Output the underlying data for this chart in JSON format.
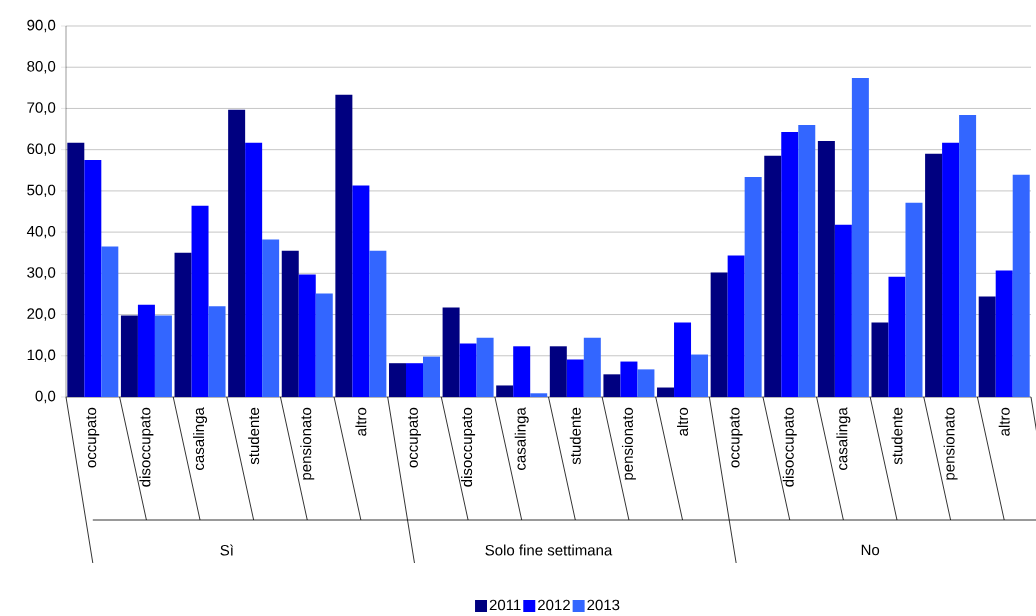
{
  "chart_data": {
    "type": "bar",
    "categories": [
      "occupato",
      "disoccupato",
      "casalinga",
      "studente",
      "pensionato",
      "altro",
      "occupato",
      "disoccupato",
      "casalinga",
      "studente",
      "pensionato",
      "altro",
      "occupato",
      "disoccupato",
      "casalinga",
      "studente",
      "pensionato",
      "altro"
    ],
    "series": [
      {
        "name": "2011",
        "color": "#000080",
        "values": [
          61.7,
          19.8,
          35.0,
          69.7,
          35.5,
          73.3,
          8.2,
          21.7,
          2.8,
          12.3,
          5.5,
          2.3,
          30.2,
          58.5,
          62.1,
          18.1,
          59.0,
          24.4
        ]
      },
      {
        "name": "2012",
        "color": "#0000ff",
        "values": [
          57.5,
          22.4,
          46.4,
          61.7,
          29.7,
          51.3,
          8.2,
          13.0,
          12.3,
          9.1,
          8.6,
          18.1,
          34.3,
          64.3,
          41.8,
          29.2,
          61.7,
          30.7
        ]
      },
      {
        "name": "2013",
        "color": "#3366ff",
        "values": [
          36.5,
          19.8,
          22.0,
          38.2,
          25.1,
          35.5,
          9.8,
          14.4,
          0.9,
          14.4,
          6.7,
          10.3,
          53.4,
          66.0,
          77.4,
          47.1,
          68.4,
          53.9
        ]
      }
    ],
    "annotations": [
      "Sì",
      "Solo fine settimana",
      "No"
    ],
    "ylim": [
      0,
      90
    ],
    "yticks": [
      {
        "value": 0,
        "label": "0,0"
      },
      {
        "value": 10,
        "label": "10,0"
      },
      {
        "value": 20,
        "label": "20,0"
      },
      {
        "value": 30,
        "label": "30,0"
      },
      {
        "value": 40,
        "label": "40,0"
      },
      {
        "value": 50,
        "label": "50,0"
      },
      {
        "value": 60,
        "label": "60,0"
      },
      {
        "value": 70,
        "label": "70,0"
      },
      {
        "value": 80,
        "label": "80,0"
      },
      {
        "value": 90,
        "label": "90,0"
      }
    ],
    "grid": "y",
    "legend": "bottom"
  }
}
